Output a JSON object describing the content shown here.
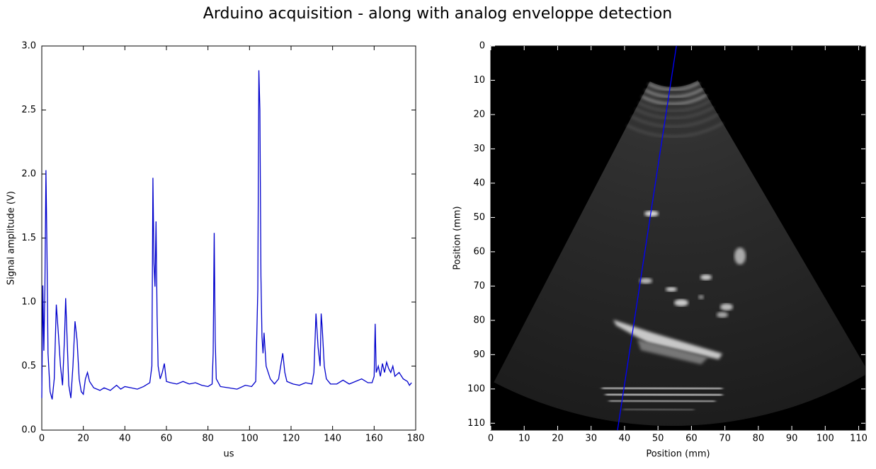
{
  "title": "Arduino acquisition - along with analog enveloppe detection",
  "chart_data": [
    {
      "type": "line",
      "xlabel": "us",
      "ylabel": "Signal amplitude (V)",
      "xlim": [
        0,
        180
      ],
      "ylim": [
        0,
        3
      ],
      "xticks": [
        0,
        20,
        40,
        60,
        80,
        100,
        120,
        140,
        160,
        180
      ],
      "yticks": [
        {
          "value": 0,
          "label": "0.0"
        },
        0.5,
        {
          "value": 1,
          "label": "1.0"
        },
        1.5,
        {
          "value": 2,
          "label": "2.0"
        },
        2.5,
        {
          "value": 3,
          "label": "3.0"
        }
      ],
      "x": [
        0,
        0.5,
        1,
        1.5,
        2,
        2.5,
        3,
        4,
        5,
        6,
        7,
        8,
        9,
        10,
        11,
        11.5,
        12,
        13,
        14,
        15,
        16,
        17,
        18,
        19,
        20,
        21,
        22,
        23,
        25,
        28,
        30,
        33,
        36,
        38,
        40,
        43,
        46,
        49,
        51,
        52,
        53,
        53.5,
        54,
        54.5,
        55,
        55.5,
        56,
        57,
        58,
        59,
        60,
        62,
        65,
        68,
        71,
        74,
        77,
        80,
        82,
        82.5,
        83,
        83.5,
        84,
        86,
        90,
        94,
        98,
        101,
        103,
        104,
        104.5,
        105,
        105.5,
        106,
        106.5,
        107,
        108,
        109,
        110,
        112,
        114,
        115,
        116,
        117,
        118,
        121,
        124,
        127,
        130,
        131,
        132,
        133,
        134,
        134.5,
        135,
        136,
        137,
        139,
        142,
        145,
        148,
        151,
        154,
        157,
        159,
        160,
        160.5,
        161,
        162,
        163,
        164,
        165,
        166,
        167,
        168,
        169,
        170,
        172,
        174,
        176,
        177,
        178
      ],
      "series": [
        {
          "color": "#0000cc",
          "values": [
            0.25,
            1.13,
            0.62,
            1.1,
            2.03,
            1.4,
            0.6,
            0.3,
            0.24,
            0.4,
            0.98,
            0.75,
            0.5,
            0.35,
            0.75,
            1.03,
            0.8,
            0.35,
            0.25,
            0.5,
            0.85,
            0.7,
            0.4,
            0.3,
            0.28,
            0.4,
            0.45,
            0.38,
            0.33,
            0.31,
            0.33,
            0.31,
            0.35,
            0.32,
            0.34,
            0.33,
            0.32,
            0.34,
            0.36,
            0.37,
            0.5,
            1.97,
            1.3,
            1.12,
            1.63,
            0.9,
            0.5,
            0.4,
            0.45,
            0.52,
            0.38,
            0.37,
            0.36,
            0.38,
            0.36,
            0.37,
            0.35,
            0.34,
            0.36,
            0.6,
            1.54,
            0.7,
            0.4,
            0.34,
            0.33,
            0.32,
            0.35,
            0.34,
            0.38,
            1.1,
            2.81,
            2.5,
            1.2,
            0.73,
            0.6,
            0.76,
            0.5,
            0.45,
            0.4,
            0.36,
            0.4,
            0.5,
            0.6,
            0.45,
            0.38,
            0.36,
            0.35,
            0.37,
            0.36,
            0.45,
            0.91,
            0.65,
            0.5,
            0.91,
            0.8,
            0.5,
            0.4,
            0.36,
            0.36,
            0.39,
            0.36,
            0.38,
            0.4,
            0.37,
            0.37,
            0.42,
            0.83,
            0.45,
            0.5,
            0.42,
            0.52,
            0.45,
            0.53,
            0.48,
            0.45,
            0.5,
            0.42,
            0.45,
            0.4,
            0.38,
            0.35,
            0.37
          ]
        }
      ]
    },
    {
      "type": "image",
      "xlabel": "Position (mm)",
      "ylabel": "Position (mm)",
      "xlim": [
        0,
        112
      ],
      "ylim": [
        112,
        0
      ],
      "xticks": [
        0,
        10,
        20,
        30,
        40,
        50,
        60,
        70,
        80,
        90,
        100,
        110
      ],
      "yticks": [
        0,
        10,
        20,
        30,
        40,
        50,
        60,
        70,
        80,
        90,
        100,
        110
      ],
      "series": [
        {
          "color": "#0000ff",
          "x": [
            55.5,
            37.9
          ],
          "values": [
            0,
            112
          ]
        }
      ]
    }
  ]
}
